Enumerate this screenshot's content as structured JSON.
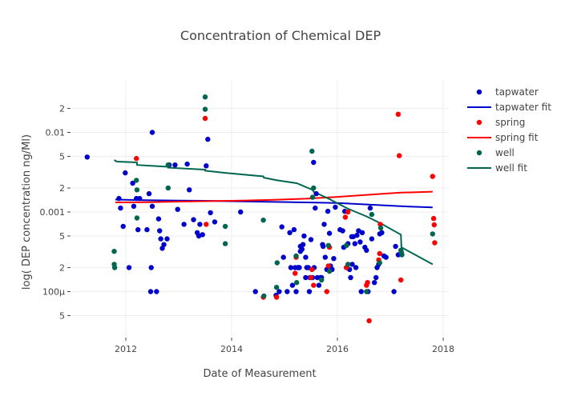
{
  "chart_data": {
    "type": "scatter",
    "title": "Concentration of Chemical DEP",
    "xlabel": "Date of Measurement",
    "ylabel": "log( DEP concentration ng/Ml)",
    "yscale": "log",
    "xlim": [
      2010.0,
      2018.1
    ],
    "ylim": [
      3.55e-05,
      0.0283
    ],
    "grid": true,
    "legend_position": "top-right",
    "x_ticks": [
      {
        "value": 2012,
        "label": "2012"
      },
      {
        "value": 2014,
        "label": "2014"
      },
      {
        "value": 2016,
        "label": "2016"
      },
      {
        "value": 2018,
        "label": "2018"
      }
    ],
    "y_ticks": [
      {
        "value": 5e-05,
        "label": "5"
      },
      {
        "value": 0.0001,
        "label": "100µ"
      },
      {
        "value": 0.0002,
        "label": "2"
      },
      {
        "value": 0.0005,
        "label": "5"
      },
      {
        "value": 0.001,
        "label": "0.001"
      },
      {
        "value": 0.002,
        "label": "2"
      },
      {
        "value": 0.005,
        "label": "5"
      },
      {
        "value": 0.01,
        "label": "0.01"
      },
      {
        "value": 0.02,
        "label": "2"
      }
    ],
    "series": [
      {
        "name": "tapwater",
        "kind": "markers",
        "color": "#0000cc",
        "points": [
          [
            2011.27,
            0.0049
          ],
          [
            2011.87,
            0.00148
          ],
          [
            2011.9,
            0.00112
          ],
          [
            2011.95,
            0.00066
          ],
          [
            2011.99,
            0.0031
          ],
          [
            2012.06,
            0.0002
          ],
          [
            2012.13,
            0.0023
          ],
          [
            2012.15,
            0.00118
          ],
          [
            2012.2,
            0.00148
          ],
          [
            2012.23,
            0.0006
          ],
          [
            2012.26,
            0.00148
          ],
          [
            2012.4,
            0.0006
          ],
          [
            2012.44,
            0.0017
          ],
          [
            2012.47,
            0.0001
          ],
          [
            2012.48,
            0.0002
          ],
          [
            2012.5,
            0.01
          ],
          [
            2012.5,
            0.00118
          ],
          [
            2012.58,
            0.0001
          ],
          [
            2012.62,
            0.00082
          ],
          [
            2012.64,
            0.00058
          ],
          [
            2012.66,
            0.00046
          ],
          [
            2012.69,
            0.00035
          ],
          [
            2012.72,
            0.00039
          ],
          [
            2012.78,
            0.00046
          ],
          [
            2012.82,
            0.0039
          ],
          [
            2012.93,
            0.0039
          ],
          [
            2012.98,
            0.00108
          ],
          [
            2013.1,
            0.0007
          ],
          [
            2013.16,
            0.004
          ],
          [
            2013.2,
            0.0019
          ],
          [
            2013.28,
            0.0008
          ],
          [
            2013.35,
            0.00055
          ],
          [
            2013.38,
            0.0005
          ],
          [
            2013.4,
            0.0007
          ],
          [
            2013.45,
            0.00052
          ],
          [
            2013.52,
            0.0038
          ],
          [
            2013.55,
            0.0082
          ],
          [
            2013.6,
            0.00098
          ],
          [
            2013.68,
            0.00075
          ],
          [
            2014.17,
            0.001
          ],
          [
            2014.45,
            0.0001
          ],
          [
            2014.84,
            9e-05
          ],
          [
            2014.9,
            0.0001
          ],
          [
            2014.95,
            0.00065
          ],
          [
            2014.98,
            0.00027
          ],
          [
            2015.05,
            0.0001
          ],
          [
            2015.1,
            0.00055
          ],
          [
            2015.12,
            0.0002
          ],
          [
            2015.15,
            0.00012
          ],
          [
            2015.18,
            0.0006
          ],
          [
            2015.2,
            0.0002
          ],
          [
            2015.22,
            0.0001
          ],
          [
            2015.25,
            0.0002
          ],
          [
            2015.27,
            0.0002
          ],
          [
            2015.28,
            0.0002
          ],
          [
            2015.3,
            0.00032
          ],
          [
            2015.3,
            0.00037
          ],
          [
            2015.33,
            0.00034
          ],
          [
            2015.35,
            0.00039
          ],
          [
            2015.37,
            0.0005
          ],
          [
            2015.4,
            0.00027
          ],
          [
            2015.4,
            0.00015
          ],
          [
            2015.42,
            0.0002
          ],
          [
            2015.45,
            0.0002
          ],
          [
            2015.47,
            0.0001
          ],
          [
            2015.48,
            0.00015
          ],
          [
            2015.5,
            0.00045
          ],
          [
            2015.53,
            0.00015
          ],
          [
            2015.55,
            0.0042
          ],
          [
            2015.56,
            0.0002
          ],
          [
            2015.58,
            0.00112
          ],
          [
            2015.6,
            0.0017
          ],
          [
            2015.62,
            0.00015
          ],
          [
            2015.65,
            0.00012
          ],
          [
            2015.68,
            0.00015
          ],
          [
            2015.7,
            0.00015
          ],
          [
            2015.72,
            0.00039
          ],
          [
            2015.73,
            0.00037
          ],
          [
            2015.75,
            0.0007
          ],
          [
            2015.77,
            0.00027
          ],
          [
            2015.8,
            0.00019
          ],
          [
            2015.82,
            0.00102
          ],
          [
            2015.85,
            0.00054
          ],
          [
            2015.87,
            0.00021
          ],
          [
            2015.9,
            0.00019
          ],
          [
            2015.93,
            0.00026
          ],
          [
            2015.96,
            0.00115
          ],
          [
            2016.05,
            0.0006
          ],
          [
            2016.1,
            0.00058
          ],
          [
            2016.12,
            0.00036
          ],
          [
            2016.14,
            0.00102
          ],
          [
            2016.17,
            0.0002
          ],
          [
            2016.2,
            0.0004
          ],
          [
            2016.23,
            0.00019
          ],
          [
            2016.25,
            0.00015
          ],
          [
            2016.27,
            0.00049
          ],
          [
            2016.28,
            0.00022
          ],
          [
            2016.3,
            0.00049
          ],
          [
            2016.33,
            0.0004
          ],
          [
            2016.35,
            0.0002
          ],
          [
            2016.37,
            0.00051
          ],
          [
            2016.4,
            0.00058
          ],
          [
            2016.43,
            0.00042
          ],
          [
            2016.45,
            0.0001
          ],
          [
            2016.47,
            0.00055
          ],
          [
            2016.52,
            0.00036
          ],
          [
            2016.55,
            0.00033
          ],
          [
            2016.58,
            0.0001
          ],
          [
            2016.62,
            0.00112
          ],
          [
            2016.65,
            0.00046
          ],
          [
            2016.7,
            0.00013
          ],
          [
            2016.73,
            0.00015
          ],
          [
            2016.75,
            0.0002
          ],
          [
            2016.78,
            0.00022
          ],
          [
            2016.8,
            0.00053
          ],
          [
            2016.84,
            0.00055
          ],
          [
            2016.88,
            0.00028
          ],
          [
            2016.92,
            0.00027
          ],
          [
            2017.07,
            0.0001
          ],
          [
            2017.1,
            0.00037
          ],
          [
            2017.15,
            0.00029
          ]
        ]
      },
      {
        "name": "tapwater fit",
        "kind": "line",
        "color": "#0000cc",
        "points": [
          [
            2011.8,
            0.00143
          ],
          [
            2012.4,
            0.00141
          ],
          [
            2013.0,
            0.00139
          ],
          [
            2013.6,
            0.00138
          ],
          [
            2014.2,
            0.00136
          ],
          [
            2014.8,
            0.00134
          ],
          [
            2015.4,
            0.00132
          ],
          [
            2016.0,
            0.0013
          ],
          [
            2016.6,
            0.00124
          ],
          [
            2017.2,
            0.00118
          ],
          [
            2017.8,
            0.00114
          ]
        ]
      },
      {
        "name": "spring",
        "kind": "markers",
        "color": "#ff0000",
        "points": [
          [
            2012.2,
            0.0047
          ],
          [
            2013.5,
            0.015
          ],
          [
            2013.52,
            0.0007
          ],
          [
            2014.6,
            8.5e-05
          ],
          [
            2014.85,
            8.5e-05
          ],
          [
            2015.2,
            0.00017
          ],
          [
            2015.22,
            0.00027
          ],
          [
            2015.5,
            0.00015
          ],
          [
            2015.52,
            0.00019
          ],
          [
            2015.55,
            0.00012
          ],
          [
            2015.8,
            0.0001
          ],
          [
            2015.83,
            0.00021
          ],
          [
            2015.85,
            0.00036
          ],
          [
            2016.15,
            0.00086
          ],
          [
            2016.17,
            0.0002
          ],
          [
            2016.55,
            0.00012
          ],
          [
            2016.57,
            0.00013
          ],
          [
            2016.6,
            4.3e-05
          ],
          [
            2016.78,
            0.00025
          ],
          [
            2016.81,
            0.0007
          ],
          [
            2017.15,
            0.0169
          ],
          [
            2017.17,
            0.0051
          ],
          [
            2017.2,
            0.00014
          ],
          [
            2017.8,
            0.0028
          ],
          [
            2017.82,
            0.00083
          ],
          [
            2017.83,
            0.00069
          ],
          [
            2017.84,
            0.00041
          ],
          [
            2016.8,
            0.0003
          ],
          [
            2016.2,
            0.001
          ]
        ]
      },
      {
        "name": "spring fit",
        "kind": "line",
        "color": "#ff0000",
        "points": [
          [
            2011.8,
            0.00132
          ],
          [
            2012.4,
            0.00133
          ],
          [
            2013.0,
            0.00135
          ],
          [
            2013.6,
            0.00137
          ],
          [
            2014.2,
            0.00139
          ],
          [
            2014.8,
            0.00142
          ],
          [
            2015.4,
            0.00147
          ],
          [
            2016.0,
            0.00155
          ],
          [
            2016.6,
            0.00165
          ],
          [
            2017.2,
            0.00175
          ],
          [
            2017.8,
            0.0018
          ]
        ]
      },
      {
        "name": "well",
        "kind": "markers",
        "color": "#006650",
        "points": [
          [
            2011.78,
            0.00032
          ],
          [
            2011.78,
            0.00022
          ],
          [
            2011.79,
            0.0002
          ],
          [
            2012.2,
            0.0025
          ],
          [
            2012.21,
            0.0019
          ],
          [
            2012.21,
            0.00084
          ],
          [
            2012.8,
            0.0039
          ],
          [
            2012.8,
            0.002
          ],
          [
            2013.5,
            0.0279
          ],
          [
            2013.5,
            0.0195
          ],
          [
            2013.88,
            0.0004
          ],
          [
            2013.88,
            0.00066
          ],
          [
            2014.6,
            0.00079
          ],
          [
            2014.61,
            8.8e-05
          ],
          [
            2014.85,
            0.000113
          ],
          [
            2014.86,
            0.00023
          ],
          [
            2015.22,
            0.00028
          ],
          [
            2015.23,
            0.00013
          ],
          [
            2015.52,
            0.0058
          ],
          [
            2015.53,
            0.00153
          ],
          [
            2015.55,
            0.002
          ],
          [
            2015.7,
            0.00014
          ],
          [
            2015.83,
            0.00038
          ],
          [
            2015.85,
            0.00018
          ],
          [
            2016.17,
            0.00038
          ],
          [
            2016.2,
            0.00022
          ],
          [
            2016.55,
            0.0001
          ],
          [
            2016.8,
            0.00023
          ],
          [
            2016.82,
            0.00063
          ],
          [
            2017.2,
            0.00033
          ],
          [
            2017.21,
            0.00031
          ],
          [
            2017.22,
            0.00029
          ],
          [
            2017.8,
            0.00053
          ],
          [
            2016.65,
            0.00093
          ]
        ]
      },
      {
        "name": "well fit",
        "kind": "line",
        "color": "#006650",
        "points": [
          [
            2011.78,
            0.0045
          ],
          [
            2011.83,
            0.0043
          ],
          [
            2012.21,
            0.0042
          ],
          [
            2012.21,
            0.0039
          ],
          [
            2012.8,
            0.0037
          ],
          [
            2012.8,
            0.0036
          ],
          [
            2013.5,
            0.0034
          ],
          [
            2013.5,
            0.0033
          ],
          [
            2013.88,
            0.0031
          ],
          [
            2014.6,
            0.0028
          ],
          [
            2014.61,
            0.0027
          ],
          [
            2014.86,
            0.0025
          ],
          [
            2015.23,
            0.0023
          ],
          [
            2015.53,
            0.0019
          ],
          [
            2015.55,
            0.0018
          ],
          [
            2015.85,
            0.00145
          ],
          [
            2016.2,
            0.0011
          ],
          [
            2016.55,
            0.00088
          ],
          [
            2016.82,
            0.00072
          ],
          [
            2017.2,
            0.00052
          ],
          [
            2017.21,
            0.00036
          ],
          [
            2017.8,
            0.00022
          ]
        ]
      }
    ]
  }
}
